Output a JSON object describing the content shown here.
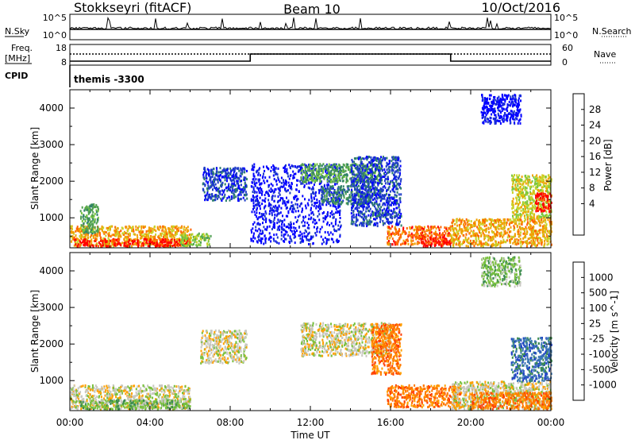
{
  "header": {
    "station": "Stokkseyri (fitACF)",
    "beam": "Beam 10",
    "date": "10/Oct/2016"
  },
  "strip_panel": {
    "left_labels": [
      "N.Sky",
      "Freq.",
      "[MHz]",
      "CPID"
    ],
    "right_labels": [
      "N.Search",
      "Nave"
    ],
    "nsky_ticks": [
      "10^5",
      "10^0"
    ],
    "nsky_right_ticks": [
      "10^5",
      "10^0"
    ],
    "freq_ticks": [
      "18",
      "8"
    ],
    "nave_ticks": [
      "60",
      "0"
    ],
    "cpid_text": "themis -3300"
  },
  "chart_data": [
    {
      "type": "heatmap",
      "name_key": "power",
      "ylabel": "Slant Range [km]",
      "xlabel": "",
      "ylim": [
        180,
        4500
      ],
      "yticks": [
        1000,
        2000,
        3000,
        4000
      ],
      "xlim": [
        0,
        24
      ],
      "colorbar_label": "Power [dB]",
      "colorbar_ticks": [
        "28",
        "24",
        "20",
        "16",
        "12",
        "8",
        "4"
      ],
      "colors": [
        "#0000ff",
        "#1f3cc8",
        "#2e7f6b",
        "#50a050",
        "#78c840",
        "#c8d228",
        "#f0a000",
        "#ff6400",
        "#ff0000"
      ],
      "regions": [
        {
          "t0": 0.0,
          "t1": 6.0,
          "r0": 250,
          "r1": 800,
          "level": 6
        },
        {
          "t0": 0.2,
          "t1": 6.0,
          "r0": 250,
          "r1": 450,
          "level": 8
        },
        {
          "t0": 0.5,
          "t1": 1.4,
          "r0": 600,
          "r1": 1400,
          "level": 3
        },
        {
          "t0": 5.5,
          "t1": 7.0,
          "r0": 250,
          "r1": 600,
          "level": 4
        },
        {
          "t0": 6.6,
          "t1": 8.8,
          "r0": 1500,
          "r1": 2400,
          "level": 1
        },
        {
          "t0": 9.0,
          "t1": 13.5,
          "r0": 300,
          "r1": 2500,
          "level": 0
        },
        {
          "t0": 11.5,
          "t1": 15.5,
          "r0": 2000,
          "r1": 2500,
          "level": 3
        },
        {
          "t0": 12.5,
          "t1": 15.0,
          "r0": 1400,
          "r1": 1900,
          "level": 2
        },
        {
          "t0": 14.0,
          "t1": 16.5,
          "r0": 800,
          "r1": 2700,
          "level": 1
        },
        {
          "t0": 15.8,
          "t1": 19.0,
          "r0": 300,
          "r1": 800,
          "level": 7
        },
        {
          "t0": 17.5,
          "t1": 19.0,
          "r0": 250,
          "r1": 500,
          "level": 8
        },
        {
          "t0": 19.0,
          "t1": 24.0,
          "r0": 250,
          "r1": 1000,
          "level": 6
        },
        {
          "t0": 22.0,
          "t1": 24.0,
          "r0": 1000,
          "r1": 2200,
          "level": 5
        },
        {
          "t0": 23.2,
          "t1": 24.0,
          "r0": 1200,
          "r1": 1700,
          "level": 8
        },
        {
          "t0": 20.5,
          "t1": 22.5,
          "r0": 3600,
          "r1": 4400,
          "level": 0
        }
      ]
    },
    {
      "type": "heatmap",
      "name_key": "velocity",
      "ylabel": "Slant Range [km]",
      "xlabel": "Time UT",
      "ylim": [
        180,
        4500
      ],
      "yticks": [
        1000,
        2000,
        3000,
        4000
      ],
      "xlim": [
        0,
        24
      ],
      "xticks": [
        "00:00",
        "04:00",
        "08:00",
        "12:00",
        "16:00",
        "20:00",
        "00:00"
      ],
      "colorbar_label": "Velocity [m s^-1]",
      "colorbar_ticks": [
        "1000",
        "500",
        "100",
        "25",
        "-25",
        "-100",
        "-500",
        "-1000"
      ],
      "colors": [
        "#2040c8",
        "#3c78b4",
        "#3c8c50",
        "#78c03c",
        "#c8c8c0",
        "#ffa000",
        "#ff7800",
        "#ff3c00",
        "#dc0000"
      ],
      "regions": [
        {
          "t0": 0.0,
          "t1": 6.0,
          "r0": 250,
          "r1": 900,
          "level": 4
        },
        {
          "t0": 0.5,
          "t1": 6.0,
          "r0": 250,
          "r1": 500,
          "level": 3
        },
        {
          "t0": 6.5,
          "t1": 8.8,
          "r0": 1500,
          "r1": 2400,
          "level": 4
        },
        {
          "t0": 11.5,
          "t1": 16.0,
          "r0": 1700,
          "r1": 2600,
          "level": 4
        },
        {
          "t0": 15.0,
          "t1": 16.5,
          "r0": 1200,
          "r1": 2600,
          "level": 6
        },
        {
          "t0": 15.8,
          "t1": 19.5,
          "r0": 300,
          "r1": 900,
          "level": 6
        },
        {
          "t0": 19.0,
          "t1": 24.0,
          "r0": 250,
          "r1": 1000,
          "level": 4
        },
        {
          "t0": 20.0,
          "t1": 24.0,
          "r0": 250,
          "r1": 700,
          "level": 6
        },
        {
          "t0": 22.0,
          "t1": 24.0,
          "r0": 1000,
          "r1": 2200,
          "level": 1
        },
        {
          "t0": 20.5,
          "t1": 22.5,
          "r0": 3600,
          "r1": 4400,
          "level": 3
        }
      ]
    }
  ]
}
